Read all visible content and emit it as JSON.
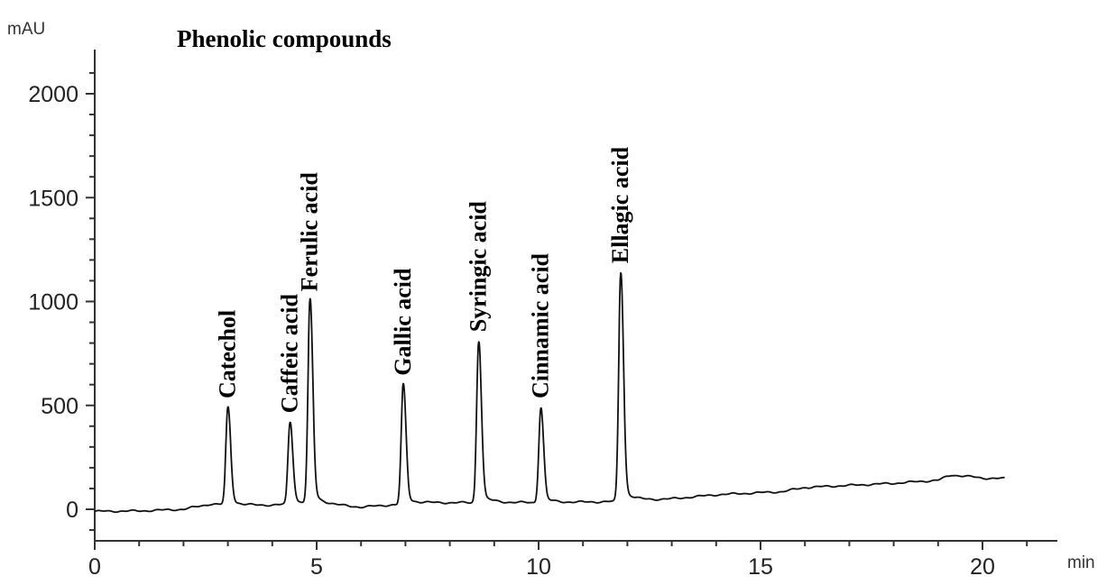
{
  "chart_data": {
    "type": "line",
    "title": "Phenolic compounds",
    "ylabel": "mAU",
    "xlabel": "min",
    "xlim": [
      0,
      21
    ],
    "ylim": [
      -150,
      2200
    ],
    "x_ticks": [
      0,
      5,
      10,
      15,
      20
    ],
    "y_ticks": [
      0,
      500,
      1000,
      1500,
      2000
    ],
    "grid": false,
    "baseline": [
      [
        0,
        -10
      ],
      [
        1,
        -8
      ],
      [
        2,
        0
      ],
      [
        2.6,
        25
      ],
      [
        3.4,
        18
      ],
      [
        4.0,
        20
      ],
      [
        4.7,
        28
      ],
      [
        5.3,
        20
      ],
      [
        6.0,
        10
      ],
      [
        6.6,
        20
      ],
      [
        7.5,
        30
      ],
      [
        8.2,
        32
      ],
      [
        8.9,
        30
      ],
      [
        9.6,
        32
      ],
      [
        10.4,
        32
      ],
      [
        11.4,
        36
      ],
      [
        12.2,
        40
      ],
      [
        13.0,
        50
      ],
      [
        14.0,
        70
      ],
      [
        15.0,
        80
      ],
      [
        15.5,
        85
      ],
      [
        16.0,
        105
      ],
      [
        17.0,
        115
      ],
      [
        18.0,
        125
      ],
      [
        19.0,
        140
      ],
      [
        19.3,
        165
      ],
      [
        19.6,
        160
      ],
      [
        20.0,
        150
      ],
      [
        20.5,
        148
      ]
    ],
    "peaks": [
      {
        "label": "Catechol",
        "rt": 3.0,
        "height": 490
      },
      {
        "label": "Caffeic acid",
        "rt": 4.4,
        "height": 420
      },
      {
        "label": "Ferulic acid",
        "rt": 4.85,
        "height": 1005
      },
      {
        "label": "Gallic acid",
        "rt": 6.95,
        "height": 600
      },
      {
        "label": "Syringic acid",
        "rt": 8.65,
        "height": 810
      },
      {
        "label": "Cinnamic acid",
        "rt": 10.05,
        "height": 490
      },
      {
        "label": "Ellagic acid",
        "rt": 11.85,
        "height": 1140
      }
    ]
  }
}
